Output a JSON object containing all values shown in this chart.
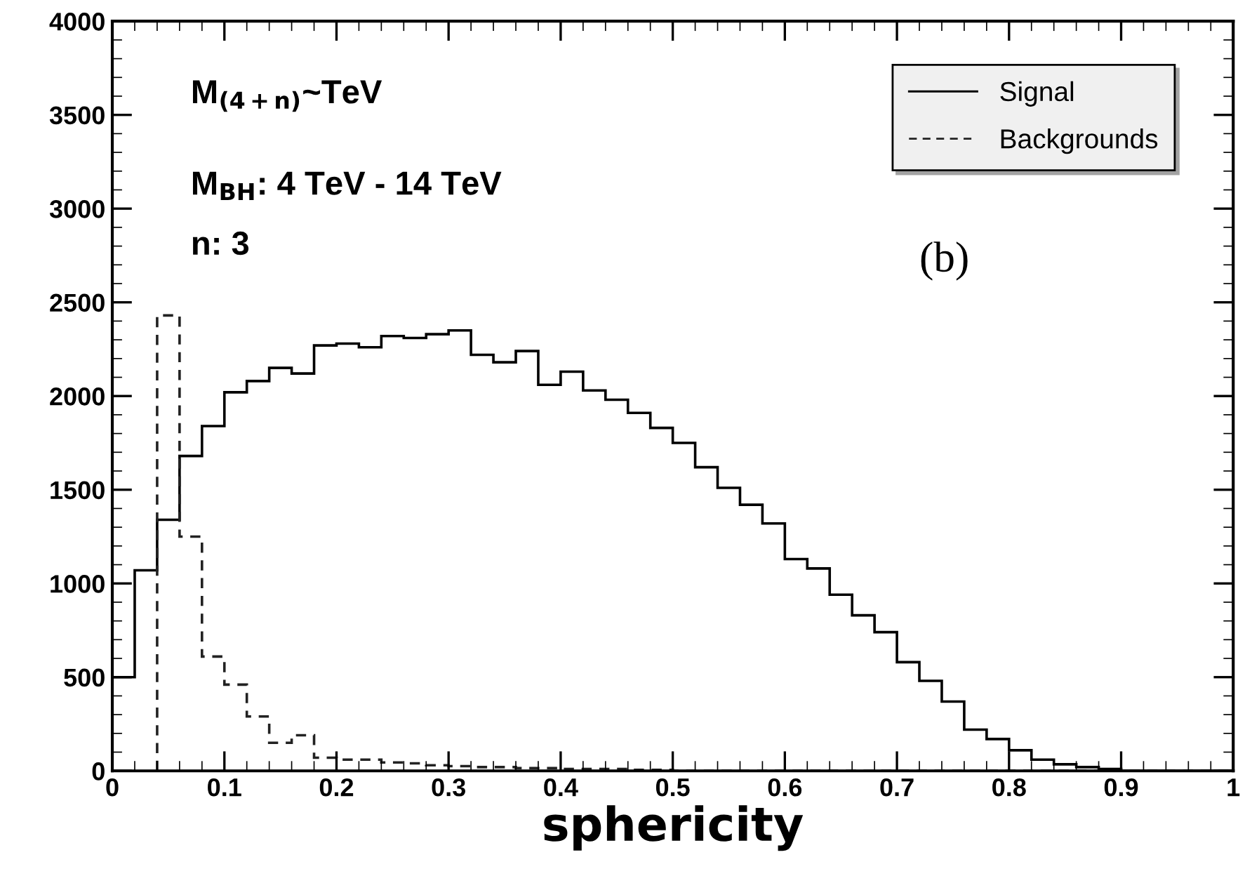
{
  "chart_data": {
    "type": "histogram",
    "xlabel": "sphericity",
    "bins": [
      0,
      0.02,
      0.04,
      0.06,
      0.08,
      0.1,
      0.12,
      0.14,
      0.16,
      0.18,
      0.2,
      0.22,
      0.24,
      0.26,
      0.28,
      0.3,
      0.32,
      0.34,
      0.36,
      0.38,
      0.4,
      0.42,
      0.44,
      0.46,
      0.48,
      0.5,
      0.52,
      0.54,
      0.56,
      0.58,
      0.6,
      0.62,
      0.64,
      0.66,
      0.68,
      0.7,
      0.72,
      0.74,
      0.76,
      0.78,
      0.8,
      0.82,
      0.84,
      0.86,
      0.88,
      0.9,
      0.92,
      0.94,
      0.96,
      0.98,
      1
    ],
    "series": [
      {
        "name": "Signal",
        "color": "#000000",
        "line_style": "solid",
        "values": [
          500,
          1070,
          1340,
          1680,
          1840,
          2020,
          2080,
          2150,
          2120,
          2270,
          2280,
          2260,
          2320,
          2310,
          2330,
          2350,
          2220,
          2180,
          2240,
          2060,
          2130,
          2030,
          1980,
          1910,
          1830,
          1750,
          1620,
          1510,
          1420,
          1320,
          1130,
          1080,
          940,
          830,
          740,
          580,
          480,
          370,
          220,
          170,
          110,
          60,
          35,
          20,
          10,
          0,
          0,
          0,
          0,
          0
        ]
      },
      {
        "name": "Backgrounds",
        "color": "#222222",
        "line_style": "dashed",
        "bins": [
          0.04,
          0.06,
          0.08,
          0.1,
          0.12,
          0.14,
          0.16,
          0.18,
          0.2,
          0.22,
          0.24,
          0.26,
          0.28,
          0.3,
          0.32,
          0.34,
          0.36,
          0.38,
          0.4,
          0.42,
          0.44,
          0.46,
          0.48,
          0.5,
          0.52,
          0.54,
          0.56,
          0.58,
          0.6,
          0.62,
          0.64,
          0.66,
          0.68,
          0.7,
          0.72,
          0.74,
          0.76,
          0.78,
          0.8,
          0.82,
          0.84,
          0.86,
          0.88,
          0.9,
          0.92,
          0.94,
          0.96,
          0.98,
          1
        ],
        "values": [
          2430,
          1250,
          610,
          460,
          290,
          150,
          190,
          70,
          60,
          60,
          45,
          40,
          30,
          25,
          20,
          20,
          15,
          15,
          10,
          10,
          10,
          5,
          5,
          0,
          0,
          0,
          0,
          0,
          0,
          0,
          0,
          0,
          0,
          0,
          0,
          0,
          0,
          0,
          0,
          0,
          0,
          0,
          0,
          0,
          0,
          0,
          0,
          0
        ]
      }
    ],
    "xlim": [
      0,
      1
    ],
    "ylim": [
      0,
      4000
    ],
    "xticks": [
      0,
      0.1,
      0.2,
      0.3,
      0.4,
      0.5,
      0.6,
      0.7,
      0.8,
      0.9,
      1
    ],
    "yticks": [
      0,
      500,
      1000,
      1500,
      2000,
      2500,
      3000,
      3500,
      4000
    ],
    "legend": "top right",
    "grid": false,
    "annotations": [
      "M$_{(4+n)}$~TeV",
      "M$_{BH}$: 4 TeV - 14 TeV",
      "n: 3",
      "(b)"
    ]
  }
}
